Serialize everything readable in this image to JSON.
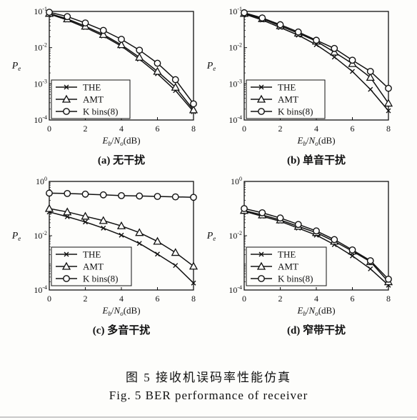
{
  "figure": {
    "caption_cn": "图 5 接收机误码率性能仿真",
    "caption_en": "Fig. 5 BER performance of receiver"
  },
  "chart_data": [
    {
      "type": "line",
      "subtitle": "(a) 无干扰",
      "xlabel": "Eb/No(dB)",
      "ylabel": "Pe",
      "yscale": "log",
      "xlim": [
        0,
        8
      ],
      "ylim": [
        0.0001,
        0.1
      ],
      "xticks": [
        "0",
        "2",
        "4",
        "6",
        "8"
      ],
      "yticks": [
        "10-4",
        "10-3",
        "10-2",
        "10-1"
      ],
      "legend_position": "bottom-left",
      "x": [
        0,
        1,
        2,
        3,
        4,
        5,
        6,
        7,
        8
      ],
      "series": [
        {
          "name": "THE",
          "marker": "x",
          "values": [
            0.085,
            0.058,
            0.036,
            0.021,
            0.011,
            0.0048,
            0.0019,
            0.00065,
            0.00017
          ]
        },
        {
          "name": "AMT",
          "marker": "triangle",
          "values": [
            0.088,
            0.062,
            0.039,
            0.023,
            0.012,
            0.0054,
            0.0022,
            0.0008,
            0.00019
          ]
        },
        {
          "name": "K bins(8)",
          "marker": "circle",
          "values": [
            0.095,
            0.072,
            0.048,
            0.03,
            0.017,
            0.0085,
            0.0037,
            0.0013,
            0.00028
          ]
        }
      ]
    },
    {
      "type": "line",
      "subtitle": "(b) 单音干扰",
      "xlabel": "Eb/No(dB)",
      "ylabel": "Pe",
      "yscale": "log",
      "xlim": [
        0,
        8
      ],
      "ylim": [
        0.0001,
        0.1
      ],
      "xticks": [
        "0",
        "2",
        "4",
        "6",
        "8"
      ],
      "yticks": [
        "10-4",
        "10-3",
        "10-2",
        "10-1"
      ],
      "legend_position": "bottom-left",
      "x": [
        0,
        1,
        2,
        3,
        4,
        5,
        6,
        7,
        8
      ],
      "series": [
        {
          "name": "THE",
          "marker": "x",
          "values": [
            0.085,
            0.058,
            0.036,
            0.022,
            0.012,
            0.0055,
            0.0022,
            0.0007,
            0.00018
          ]
        },
        {
          "name": "AMT",
          "marker": "triangle",
          "values": [
            0.088,
            0.063,
            0.04,
            0.025,
            0.015,
            0.0075,
            0.0036,
            0.0015,
            0.00029
          ]
        },
        {
          "name": "K bins(8)",
          "marker": "circle",
          "values": [
            0.092,
            0.066,
            0.043,
            0.027,
            0.016,
            0.0095,
            0.0045,
            0.0022,
            0.00075
          ]
        }
      ]
    },
    {
      "type": "line",
      "subtitle": "(c) 多音干扰",
      "xlabel": "Eb/No(dB)",
      "ylabel": "Pe",
      "yscale": "log",
      "xlim": [
        0,
        8
      ],
      "ylim": [
        0.0001,
        1
      ],
      "xticks": [
        "0",
        "2",
        "4",
        "6",
        "8"
      ],
      "yticks": [
        "10-4",
        "10-2",
        "100"
      ],
      "legend_position": "bottom-left",
      "x": [
        0,
        1,
        2,
        3,
        4,
        5,
        6,
        7,
        8
      ],
      "series": [
        {
          "name": "THE",
          "marker": "x",
          "values": [
            0.075,
            0.05,
            0.032,
            0.019,
            0.0105,
            0.0052,
            0.0021,
            0.0008,
            0.00018
          ]
        },
        {
          "name": "AMT",
          "marker": "triangle",
          "values": [
            0.1,
            0.075,
            0.052,
            0.036,
            0.023,
            0.013,
            0.0062,
            0.0024,
            0.00075
          ]
        },
        {
          "name": "K bins(8)",
          "marker": "circle",
          "values": [
            0.37,
            0.36,
            0.34,
            0.32,
            0.3,
            0.29,
            0.28,
            0.27,
            0.26
          ]
        }
      ]
    },
    {
      "type": "line",
      "subtitle": "(d) 窄带干扰",
      "xlabel": "Eb/No(dB)",
      "ylabel": "Pe",
      "yscale": "log",
      "xlim": [
        0,
        8
      ],
      "ylim": [
        0.0001,
        1
      ],
      "xticks": [
        "0",
        "2",
        "4",
        "6",
        "8"
      ],
      "yticks": [
        "10-4",
        "10-2",
        "100"
      ],
      "legend_position": "bottom-left",
      "x": [
        0,
        1,
        2,
        3,
        4,
        5,
        6,
        7,
        8
      ],
      "series": [
        {
          "name": "THE",
          "marker": "x",
          "values": [
            0.08,
            0.052,
            0.034,
            0.019,
            0.0105,
            0.0047,
            0.0018,
            0.0006,
            0.00015
          ]
        },
        {
          "name": "AMT",
          "marker": "triangle",
          "values": [
            0.085,
            0.058,
            0.038,
            0.022,
            0.013,
            0.0062,
            0.0027,
            0.0011,
            0.0002
          ]
        },
        {
          "name": "K bins(8)",
          "marker": "circle",
          "values": [
            0.1,
            0.07,
            0.045,
            0.026,
            0.015,
            0.0072,
            0.003,
            0.0012,
            0.00025
          ]
        }
      ]
    }
  ]
}
